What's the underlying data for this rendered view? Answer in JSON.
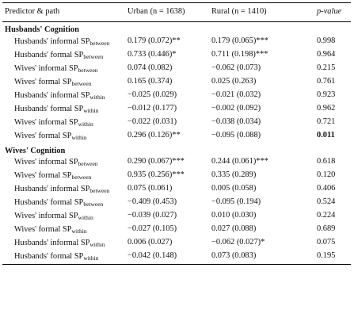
{
  "headers": {
    "predictor": "Predictor & path",
    "urban": "Urban (n = 1638)",
    "rural": "Rural (n = 1410)",
    "p": "p-value"
  },
  "sections": [
    {
      "title": "Husbands' Cognition",
      "rows": [
        {
          "label": "Husbands' informal SP",
          "sub": "between",
          "urban": "0.179 (0.072)**",
          "rural": "0.179 (0.065)***",
          "p": "0.998"
        },
        {
          "label": "Husbands' formal SP",
          "sub": "between",
          "urban": "0.733 (0.446)*",
          "rural": "0.711 (0.198)***",
          "p": "0.964"
        },
        {
          "label": "Wives' informal SP",
          "sub": "between",
          "urban": "0.074 (0.082)",
          "rural": "−0.062 (0.073)",
          "p": "0.215"
        },
        {
          "label": "Wives' formal SP",
          "sub": "between",
          "urban": "0.165 (0.374)",
          "rural": "0.025 (0.263)",
          "p": "0.761"
        },
        {
          "label": "Husbands' informal SP",
          "sub": "within",
          "urban": "−0.025 (0.029)",
          "rural": "−0.021 (0.032)",
          "p": "0.923"
        },
        {
          "label": "Husbands' formal SP",
          "sub": "within",
          "urban": "−0.012 (0.177)",
          "rural": "−0.002 (0.092)",
          "p": "0.962"
        },
        {
          "label": "Wives' informal SP",
          "sub": "within",
          "urban": "−0.022 (0.031)",
          "rural": "−0.038 (0.034)",
          "p": "0.721"
        },
        {
          "label": "Wives' formal SP",
          "sub": "within",
          "urban": "0.296 (0.126)**",
          "rural": "−0.095 (0.088)",
          "p": "0.011",
          "p_bold": true
        }
      ]
    },
    {
      "title": "Wives' Cognition",
      "rows": [
        {
          "label": "Wives' informal SP",
          "sub": "between",
          "urban": "0.290 (0.067)***",
          "rural": "0.244 (0.061)***",
          "p": "0.618"
        },
        {
          "label": "Wives' formal SP",
          "sub": "between",
          "urban": "0.935 (0.256)***",
          "rural": "0.335 (0.289)",
          "p": "0.120"
        },
        {
          "label": "Husbands' informal SP",
          "sub": "between",
          "urban": "0.075 (0.061)",
          "rural": "0.005 (0.058)",
          "p": "0.406"
        },
        {
          "label": "Husbands' formal SP",
          "sub": "between",
          "urban": "−0.409 (0.453)",
          "rural": "−0.095 (0.194)",
          "p": "0.524"
        },
        {
          "label": "Wives' informal SP",
          "sub": "within",
          "urban": "−0.039 (0.027)",
          "rural": "0.010 (0.030)",
          "p": "0.224"
        },
        {
          "label": "Wives' formal SP",
          "sub": "within",
          "urban": "−0.027 (0.105)",
          "rural": "0.027 (0.088)",
          "p": "0.689"
        },
        {
          "label": "Husbands' informal SP",
          "sub": "within",
          "urban": "0.006 (0.027)",
          "rural": "−0.062 (0.027)*",
          "p": "0.075"
        },
        {
          "label": "Husbands' formal SP",
          "sub": "within",
          "urban": "−0.042 (0.148)",
          "rural": "0.073 (0.083)",
          "p": "0.195"
        }
      ]
    }
  ]
}
